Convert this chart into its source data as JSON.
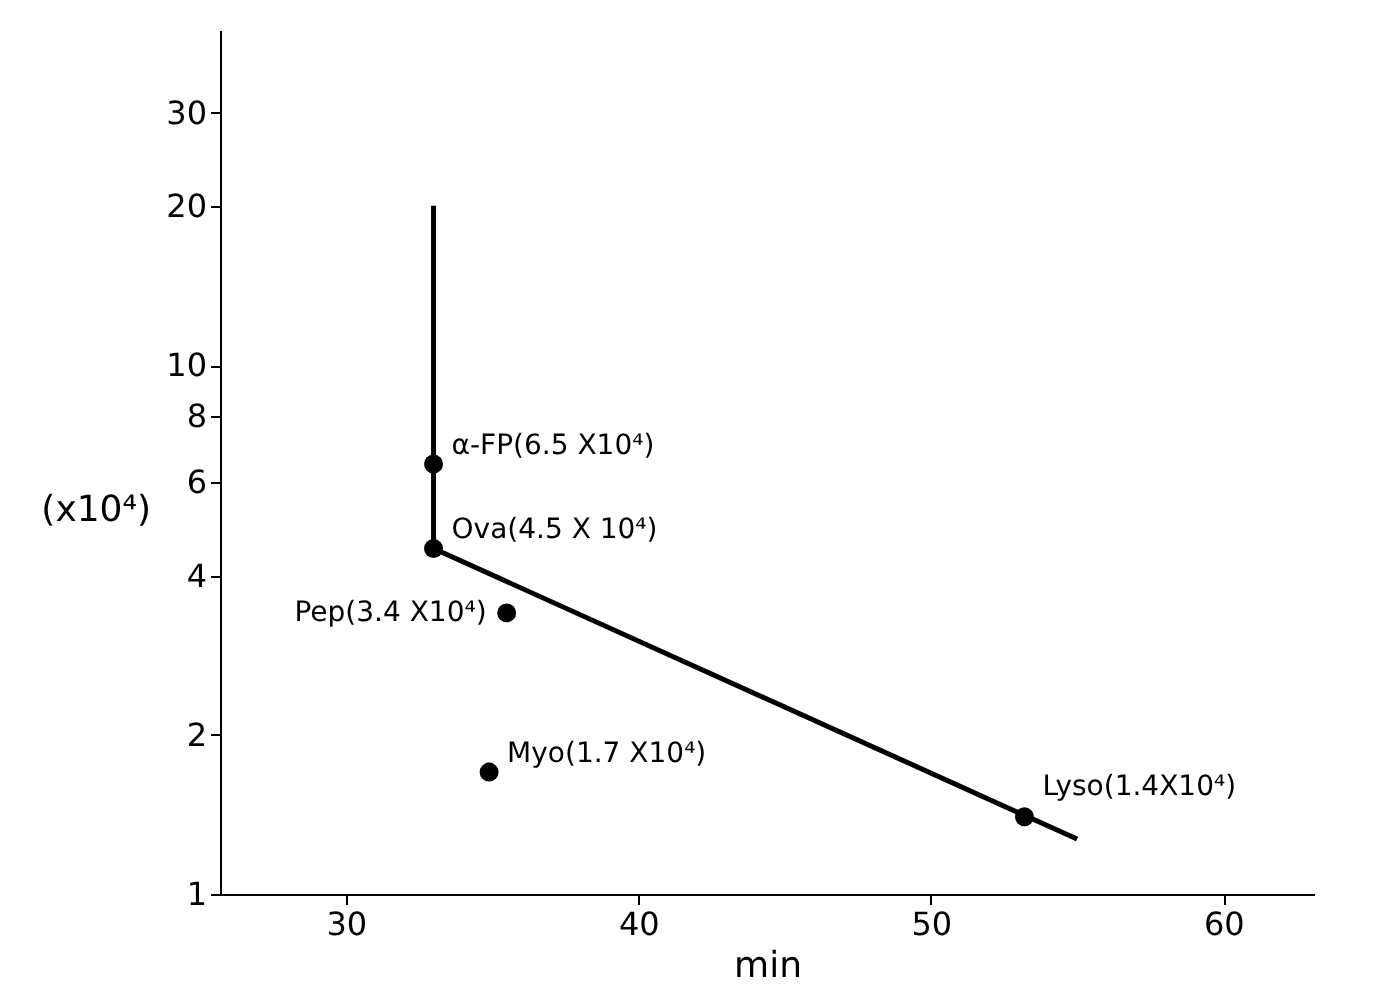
{
  "chart_data": {
    "type": "scatter",
    "xlabel": "min",
    "ylabel": "(x10⁴)",
    "log": "y",
    "xlim": [
      25.7,
      63.1
    ],
    "ylim": [
      1,
      43
    ],
    "xticks": [
      30,
      40,
      50,
      60
    ],
    "yticks": [
      1,
      2,
      4,
      6,
      8,
      10,
      20,
      30
    ],
    "grid": false,
    "series": [
      {
        "type": "scatter",
        "color": "#000000",
        "marker": "circle",
        "x": [
          33.0,
          33.0,
          35.5,
          34.9,
          53.2
        ],
        "values": [
          6.5,
          4.5,
          3.4,
          1.7,
          1.4
        ]
      },
      {
        "type": "line",
        "color": "#000000",
        "line_style": "solid",
        "x": [
          33.0,
          33.0,
          55.0
        ],
        "values": [
          20,
          4.5,
          1.27
        ]
      }
    ],
    "annotations": [
      {
        "text": "α-FP(6.5 X10⁴)",
        "x": 33.0,
        "y": 6.5
      },
      {
        "text": "Ova(4.5 X 10⁴)",
        "x": 33.0,
        "y": 4.5
      },
      {
        "text": "Pep(3.4 X10⁴)",
        "x": 35.5,
        "y": 3.4
      },
      {
        "text": "Myo(1.7 X10⁴)",
        "x": 34.9,
        "y": 1.7
      },
      {
        "text": "Lyso(1.4X10⁴)",
        "x": 53.2,
        "y": 1.4
      }
    ]
  }
}
